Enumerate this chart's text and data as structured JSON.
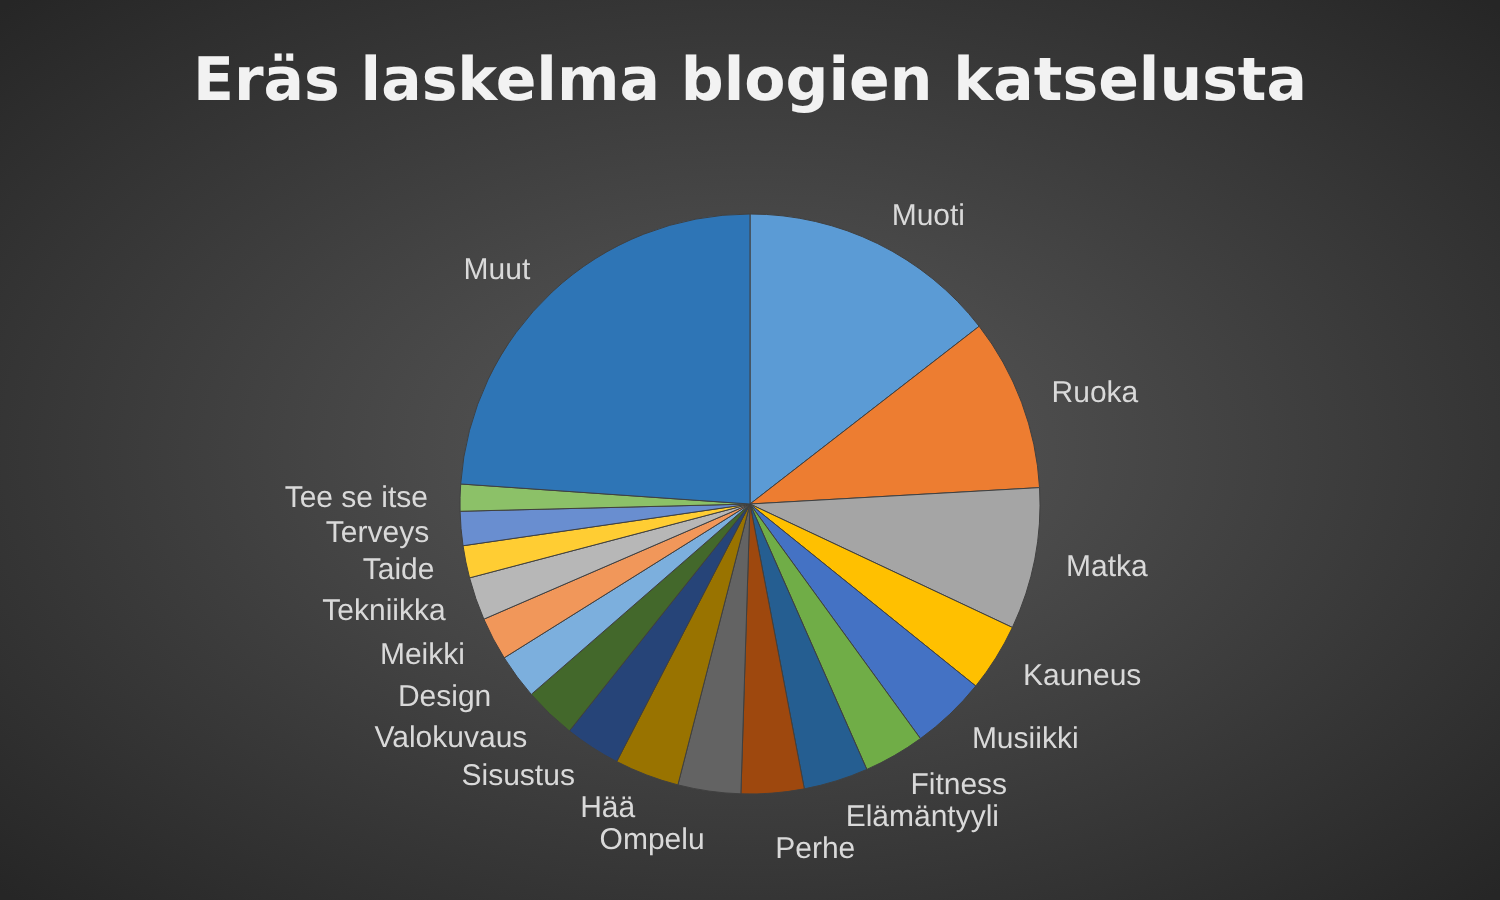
{
  "chart_data": {
    "type": "pie",
    "title": "Eräs laskelma blogien katselusta",
    "categories": [
      "Muoti",
      "Ruoka",
      "Matka",
      "Kauneus",
      "Musiikki",
      "Fitness",
      "Elämäntyyli",
      "Perhe",
      "Ompelu",
      "Hää",
      "Sisustus",
      "Valokuvaus",
      "Design",
      "Meikki",
      "Tekniikka",
      "Taide",
      "Terveys",
      "Tee se itse",
      "Muut"
    ],
    "values": [
      14.5,
      9.6,
      7.9,
      3.8,
      4.2,
      3.4,
      3.6,
      3.5,
      3.5,
      3.6,
      3.1,
      2.9,
      2.5,
      2.4,
      2.4,
      1.8,
      1.9,
      1.5,
      23.9
    ],
    "colors": [
      "#5b9bd5",
      "#ed7d31",
      "#a5a5a5",
      "#ffc000",
      "#4472c4",
      "#70ad47",
      "#255e91",
      "#9e480e",
      "#636363",
      "#997300",
      "#264478",
      "#43682b",
      "#7cafdd",
      "#f1975a",
      "#b7b7b7",
      "#ffcd33",
      "#698ed0",
      "#8cc168",
      "#2e75b6"
    ]
  }
}
